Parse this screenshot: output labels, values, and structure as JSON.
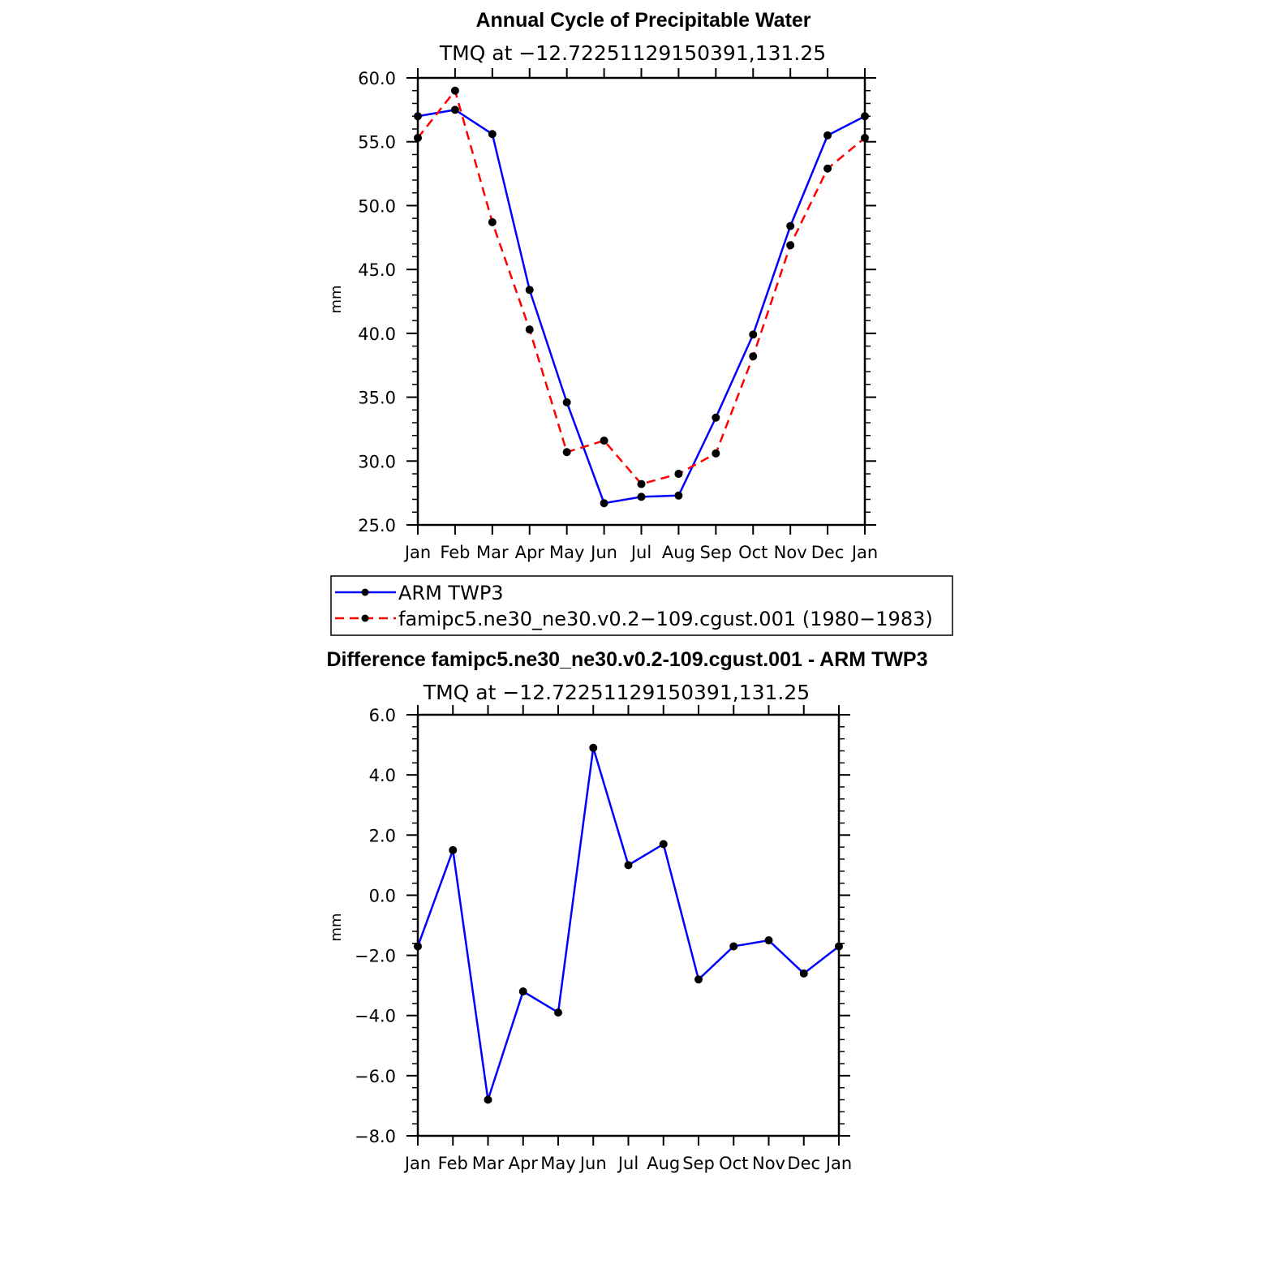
{
  "chart_data": [
    {
      "type": "line",
      "title": "Annual Cycle of Precipitable Water",
      "subtitle": "TMQ at −12.72251129150391,131.25",
      "ylabel": "mm",
      "xlabel": "",
      "ylim": [
        25.0,
        60.0
      ],
      "y_ticks": [
        25.0,
        30.0,
        35.0,
        40.0,
        45.0,
        50.0,
        55.0,
        60.0
      ],
      "y_tick_labels": [
        "25.0",
        "30.0",
        "35.0",
        "40.0",
        "45.0",
        "50.0",
        "55.0",
        "60.0"
      ],
      "categories": [
        "Jan",
        "Feb",
        "Mar",
        "Apr",
        "May",
        "Jun",
        "Jul",
        "Aug",
        "Sep",
        "Oct",
        "Nov",
        "Dec",
        "Jan"
      ],
      "series": [
        {
          "name": "ARM TWP3",
          "color": "#0000ff",
          "style": "solid",
          "values": [
            57.0,
            57.5,
            55.6,
            43.4,
            34.6,
            26.7,
            27.2,
            27.3,
            33.4,
            39.9,
            48.4,
            55.5,
            57.0
          ]
        },
        {
          "name": "famipc5.ne30_ne30.v0.2−109.cgust.001 (1980−1983)",
          "color": "#ff0000",
          "style": "dashed",
          "values": [
            55.3,
            59.0,
            48.7,
            40.3,
            30.7,
            31.6,
            28.2,
            29.0,
            30.6,
            38.2,
            46.9,
            52.9,
            55.3
          ]
        }
      ],
      "legend": "below"
    },
    {
      "type": "line",
      "title": "Difference famipc5.ne30_ne30.v0.2-109.cgust.001 - ARM TWP3",
      "subtitle": "TMQ at −12.72251129150391,131.25",
      "ylabel": "mm",
      "xlabel": "",
      "ylim": [
        -8.0,
        6.0
      ],
      "y_ticks": [
        -8.0,
        -6.0,
        -4.0,
        -2.0,
        0.0,
        2.0,
        4.0,
        6.0
      ],
      "y_tick_labels": [
        "−8.0",
        "−6.0",
        "−4.0",
        "−2.0",
        "0.0",
        "2.0",
        "4.0",
        "6.0"
      ],
      "categories": [
        "Jan",
        "Feb",
        "Mar",
        "Apr",
        "May",
        "Jun",
        "Jul",
        "Aug",
        "Sep",
        "Oct",
        "Nov",
        "Dec",
        "Jan"
      ],
      "series": [
        {
          "name": "Difference",
          "color": "#0000ff",
          "style": "solid",
          "values": [
            -1.7,
            1.5,
            -6.8,
            -3.2,
            -3.9,
            4.9,
            1.0,
            1.7,
            -2.8,
            -1.7,
            -1.5,
            -2.6,
            -1.7
          ]
        }
      ]
    }
  ]
}
